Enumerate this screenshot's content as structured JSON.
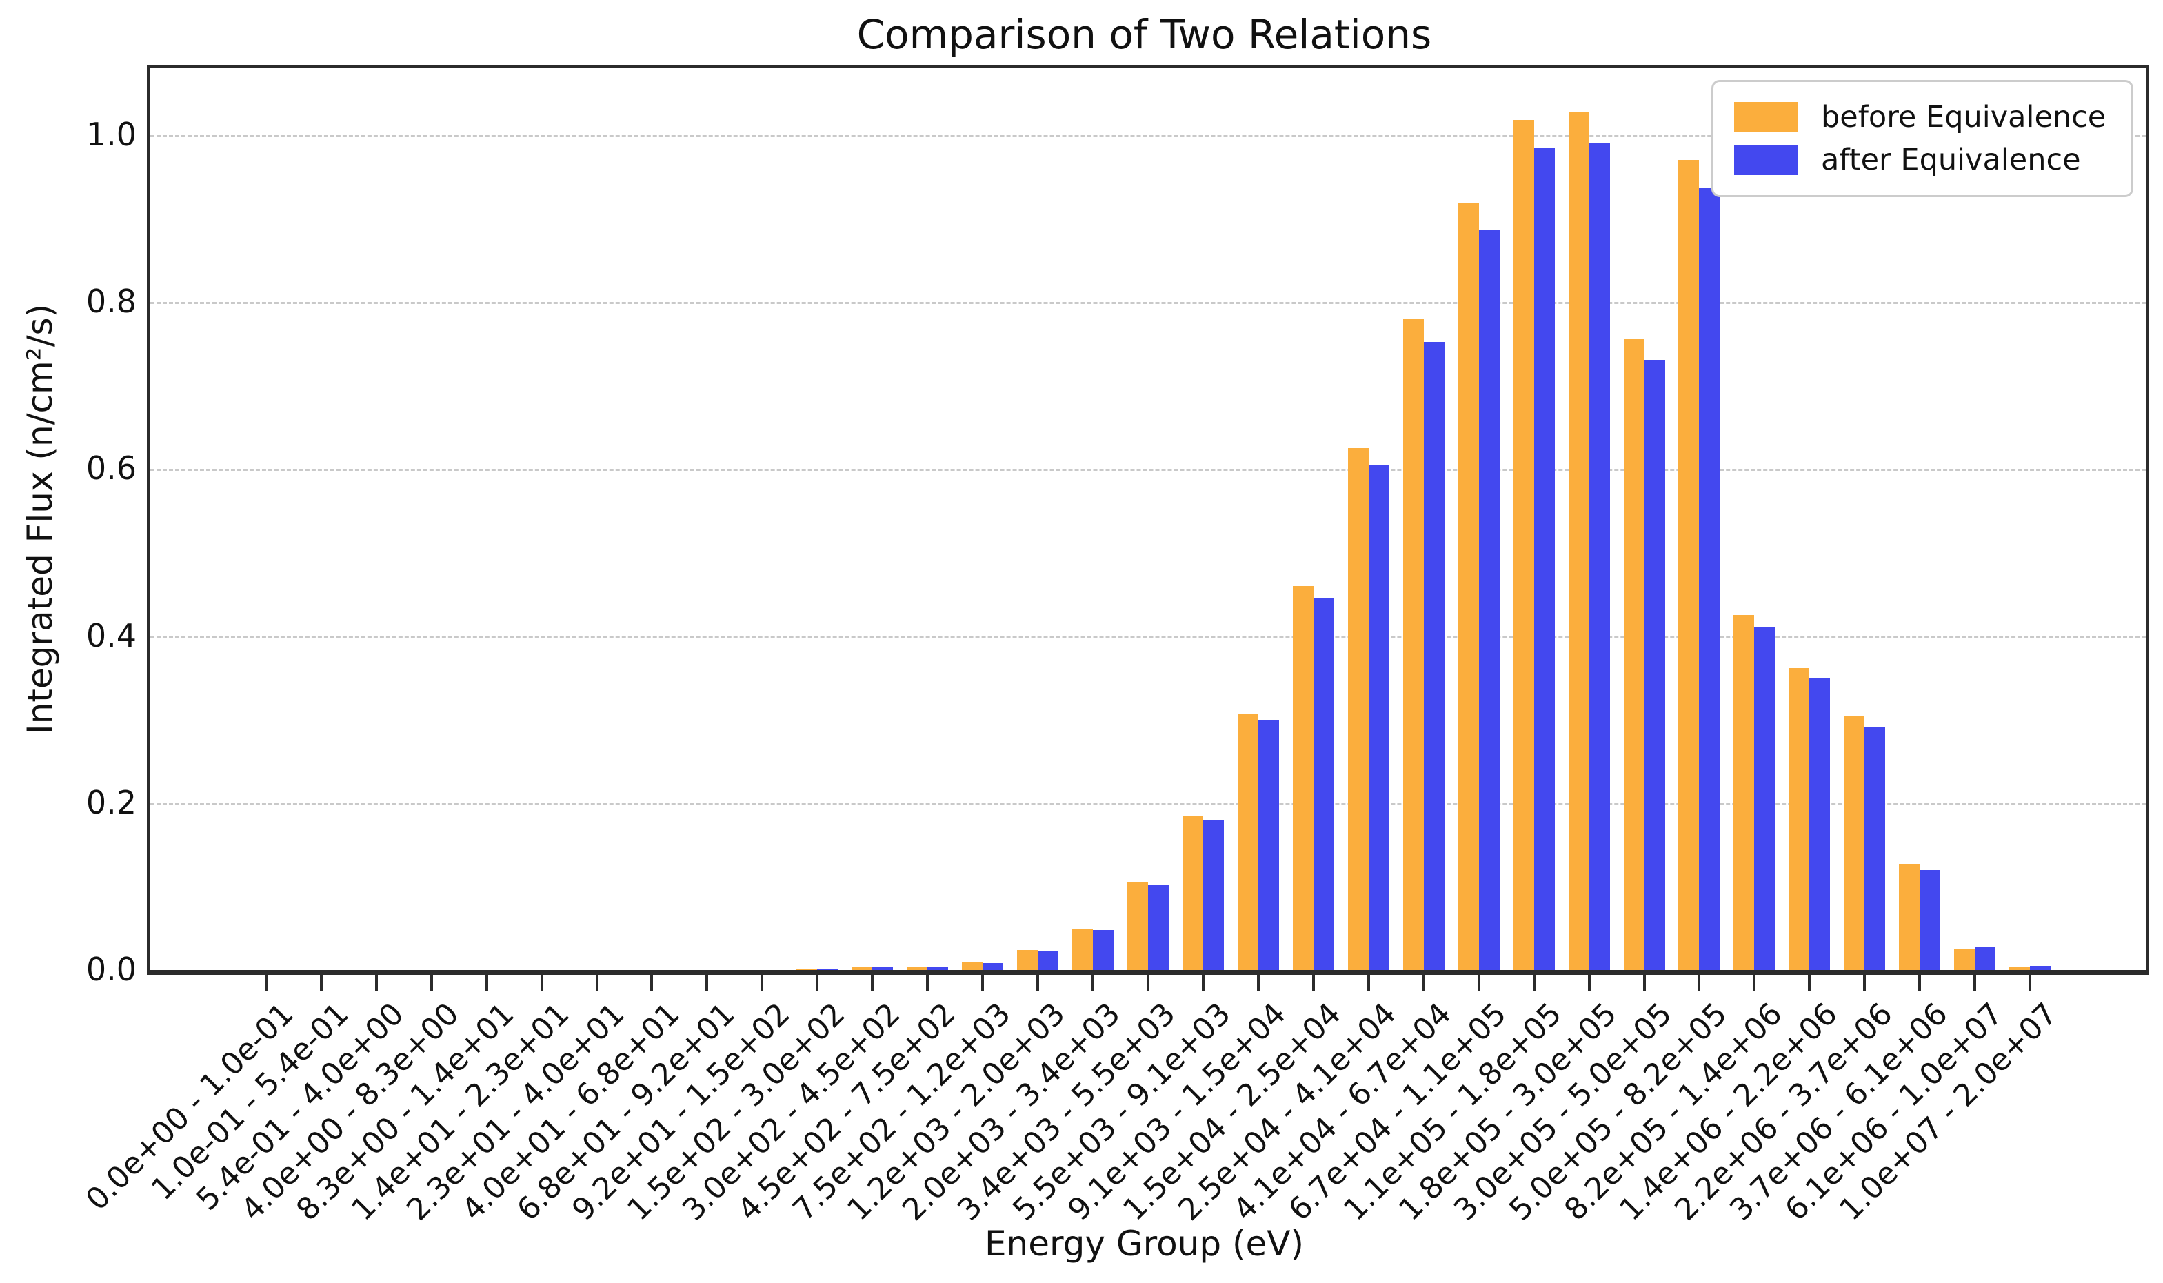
{
  "chart_data": {
    "type": "bar",
    "title": "Comparison of Two Relations",
    "xlabel": "Energy Group (eV)",
    "ylabel": "Integrated Flux (n/cm²/s)",
    "ylim": [
      0,
      1.08
    ],
    "yticks": [
      "0.0",
      "0.2",
      "0.4",
      "0.6",
      "0.8",
      "1.0"
    ],
    "grid": "dashed-horizontal",
    "legend_position": "upper-right",
    "categories": [
      "0.0e+00 - 1.0e-01",
      "1.0e-01 - 5.4e-01",
      "5.4e-01 - 4.0e+00",
      "4.0e+00 - 8.3e+00",
      "8.3e+00 - 1.4e+01",
      "1.4e+01 - 2.3e+01",
      "2.3e+01 - 4.0e+01",
      "4.0e+01 - 6.8e+01",
      "6.8e+01 - 9.2e+01",
      "9.2e+01 - 1.5e+02",
      "1.5e+02 - 3.0e+02",
      "3.0e+02 - 4.5e+02",
      "4.5e+02 - 7.5e+02",
      "7.5e+02 - 1.2e+03",
      "1.2e+03 - 2.0e+03",
      "2.0e+03 - 3.4e+03",
      "3.4e+03 - 5.5e+03",
      "5.5e+03 - 9.1e+03",
      "9.1e+03 - 1.5e+04",
      "1.5e+04 - 2.5e+04",
      "2.5e+04 - 4.1e+04",
      "4.1e+04 - 6.7e+04",
      "6.7e+04 - 1.1e+05",
      "1.1e+05 - 1.8e+05",
      "1.8e+05 - 3.0e+05",
      "3.0e+05 - 5.0e+05",
      "5.0e+05 - 8.2e+05",
      "8.2e+05 - 1.4e+06",
      "1.4e+06 - 2.2e+06",
      "2.2e+06 - 3.7e+06",
      "3.7e+06 - 6.1e+06",
      "6.1e+06 - 1.0e+07",
      "1.0e+07 - 2.0e+07"
    ],
    "series": [
      {
        "name": "before Equivalence",
        "color": "#FBAE3D",
        "values": [
          0,
          0,
          0,
          0,
          0,
          0,
          0,
          0,
          0,
          0,
          0.001,
          0.003,
          0.004,
          0.01,
          0.024,
          0.049,
          0.105,
          0.185,
          0.307,
          0.46,
          0.625,
          0.78,
          0.918,
          1.018,
          1.027,
          0.756,
          0.97,
          0.425,
          0.362,
          0.305,
          0.127,
          0.026,
          0.004
        ]
      },
      {
        "name": "after Equivalence",
        "color": "#4348EF",
        "values": [
          0,
          0,
          0,
          0,
          0,
          0,
          0,
          0,
          0,
          0,
          0.001,
          0.003,
          0.004,
          0.008,
          0.022,
          0.048,
          0.102,
          0.179,
          0.3,
          0.445,
          0.605,
          0.752,
          0.887,
          0.985,
          0.991,
          0.731,
          0.936,
          0.41,
          0.35,
          0.291,
          0.12,
          0.027,
          0.005
        ]
      }
    ]
  }
}
